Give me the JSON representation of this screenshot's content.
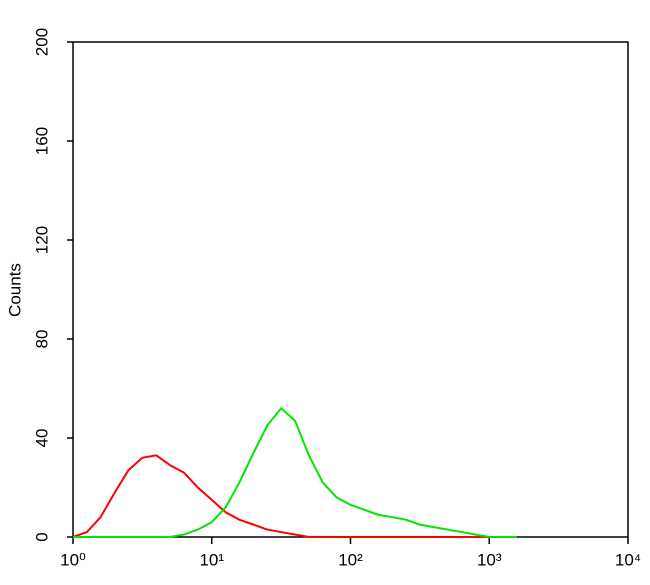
{
  "chart_data": {
    "type": "line",
    "y_label": "Counts",
    "xscale": "log",
    "xlim": [
      1,
      10000
    ],
    "ylim": [
      0,
      200
    ],
    "xticks": [
      {
        "value": 1,
        "label": "10⁰"
      },
      {
        "value": 10,
        "label": "10¹"
      },
      {
        "value": 100,
        "label": "10²"
      },
      {
        "value": 1000,
        "label": "10³"
      },
      {
        "value": 10000,
        "label": "10⁴"
      }
    ],
    "yticks": [
      0,
      40,
      80,
      120,
      160,
      200
    ],
    "x": [
      1,
      1.26,
      1.58,
      2,
      2.51,
      3.16,
      3.98,
      5.01,
      6.31,
      7.94,
      10,
      12.6,
      15.8,
      20,
      25.1,
      31.6,
      39.8,
      50.1,
      63.1,
      79.4,
      100,
      126,
      158,
      200,
      251,
      316,
      398,
      501,
      631,
      794,
      1000,
      1259,
      1585
    ],
    "series": [
      {
        "color": "#ff0000",
        "values": [
          0,
          2,
          8,
          18,
          27,
          32,
          33,
          29,
          26,
          20,
          15,
          10,
          7,
          5,
          3,
          2,
          1,
          0,
          0,
          0,
          0,
          0,
          0,
          0,
          0,
          0,
          0,
          0,
          0,
          0,
          0,
          0,
          0
        ]
      },
      {
        "color": "#00e600",
        "values": [
          0,
          0,
          0,
          0,
          0,
          0,
          0,
          0,
          1,
          3,
          6,
          12,
          22,
          34,
          45,
          52,
          47,
          33,
          22,
          16,
          13,
          11,
          9,
          8,
          7,
          5,
          4,
          3,
          2,
          1,
          0,
          0,
          0
        ]
      }
    ]
  }
}
